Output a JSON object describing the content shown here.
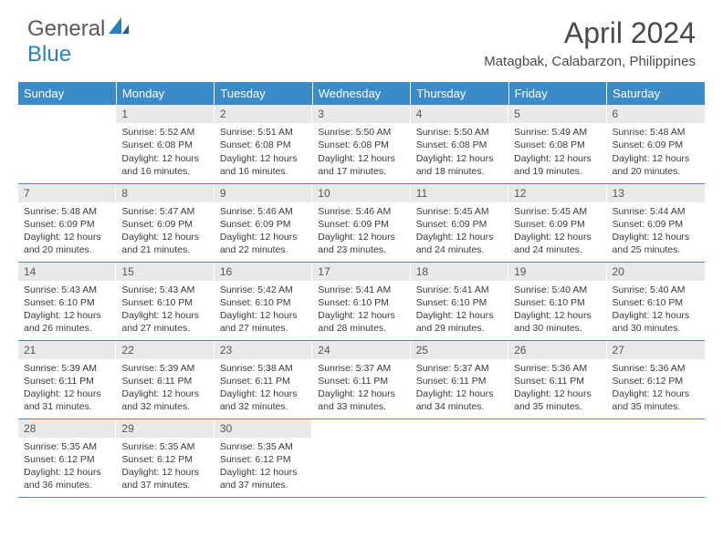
{
  "brand": {
    "name1": "General",
    "name2": "Blue"
  },
  "title": "April 2024",
  "location": "Matagbak, Calabarzon, Philippines",
  "colors": {
    "header_bg": "#3b8bc9",
    "header_text": "#ffffff",
    "daynum_bg": "#e9e9e9",
    "rule": "#3b8bc9",
    "text": "#3a3a3a"
  },
  "weekdays": [
    "Sunday",
    "Monday",
    "Tuesday",
    "Wednesday",
    "Thursday",
    "Friday",
    "Saturday"
  ],
  "weeks": [
    [
      {
        "day": "",
        "sunrise": "",
        "sunset": "",
        "daylight": ""
      },
      {
        "day": "1",
        "sunrise": "Sunrise: 5:52 AM",
        "sunset": "Sunset: 6:08 PM",
        "daylight": "Daylight: 12 hours and 16 minutes."
      },
      {
        "day": "2",
        "sunrise": "Sunrise: 5:51 AM",
        "sunset": "Sunset: 6:08 PM",
        "daylight": "Daylight: 12 hours and 16 minutes."
      },
      {
        "day": "3",
        "sunrise": "Sunrise: 5:50 AM",
        "sunset": "Sunset: 6:08 PM",
        "daylight": "Daylight: 12 hours and 17 minutes."
      },
      {
        "day": "4",
        "sunrise": "Sunrise: 5:50 AM",
        "sunset": "Sunset: 6:08 PM",
        "daylight": "Daylight: 12 hours and 18 minutes."
      },
      {
        "day": "5",
        "sunrise": "Sunrise: 5:49 AM",
        "sunset": "Sunset: 6:08 PM",
        "daylight": "Daylight: 12 hours and 19 minutes."
      },
      {
        "day": "6",
        "sunrise": "Sunrise: 5:48 AM",
        "sunset": "Sunset: 6:09 PM",
        "daylight": "Daylight: 12 hours and 20 minutes."
      }
    ],
    [
      {
        "day": "7",
        "sunrise": "Sunrise: 5:48 AM",
        "sunset": "Sunset: 6:09 PM",
        "daylight": "Daylight: 12 hours and 20 minutes."
      },
      {
        "day": "8",
        "sunrise": "Sunrise: 5:47 AM",
        "sunset": "Sunset: 6:09 PM",
        "daylight": "Daylight: 12 hours and 21 minutes."
      },
      {
        "day": "9",
        "sunrise": "Sunrise: 5:46 AM",
        "sunset": "Sunset: 6:09 PM",
        "daylight": "Daylight: 12 hours and 22 minutes."
      },
      {
        "day": "10",
        "sunrise": "Sunrise: 5:46 AM",
        "sunset": "Sunset: 6:09 PM",
        "daylight": "Daylight: 12 hours and 23 minutes."
      },
      {
        "day": "11",
        "sunrise": "Sunrise: 5:45 AM",
        "sunset": "Sunset: 6:09 PM",
        "daylight": "Daylight: 12 hours and 24 minutes."
      },
      {
        "day": "12",
        "sunrise": "Sunrise: 5:45 AM",
        "sunset": "Sunset: 6:09 PM",
        "daylight": "Daylight: 12 hours and 24 minutes."
      },
      {
        "day": "13",
        "sunrise": "Sunrise: 5:44 AM",
        "sunset": "Sunset: 6:09 PM",
        "daylight": "Daylight: 12 hours and 25 minutes."
      }
    ],
    [
      {
        "day": "14",
        "sunrise": "Sunrise: 5:43 AM",
        "sunset": "Sunset: 6:10 PM",
        "daylight": "Daylight: 12 hours and 26 minutes."
      },
      {
        "day": "15",
        "sunrise": "Sunrise: 5:43 AM",
        "sunset": "Sunset: 6:10 PM",
        "daylight": "Daylight: 12 hours and 27 minutes."
      },
      {
        "day": "16",
        "sunrise": "Sunrise: 5:42 AM",
        "sunset": "Sunset: 6:10 PM",
        "daylight": "Daylight: 12 hours and 27 minutes."
      },
      {
        "day": "17",
        "sunrise": "Sunrise: 5:41 AM",
        "sunset": "Sunset: 6:10 PM",
        "daylight": "Daylight: 12 hours and 28 minutes."
      },
      {
        "day": "18",
        "sunrise": "Sunrise: 5:41 AM",
        "sunset": "Sunset: 6:10 PM",
        "daylight": "Daylight: 12 hours and 29 minutes."
      },
      {
        "day": "19",
        "sunrise": "Sunrise: 5:40 AM",
        "sunset": "Sunset: 6:10 PM",
        "daylight": "Daylight: 12 hours and 30 minutes."
      },
      {
        "day": "20",
        "sunrise": "Sunrise: 5:40 AM",
        "sunset": "Sunset: 6:10 PM",
        "daylight": "Daylight: 12 hours and 30 minutes."
      }
    ],
    [
      {
        "day": "21",
        "sunrise": "Sunrise: 5:39 AM",
        "sunset": "Sunset: 6:11 PM",
        "daylight": "Daylight: 12 hours and 31 minutes."
      },
      {
        "day": "22",
        "sunrise": "Sunrise: 5:39 AM",
        "sunset": "Sunset: 6:11 PM",
        "daylight": "Daylight: 12 hours and 32 minutes."
      },
      {
        "day": "23",
        "sunrise": "Sunrise: 5:38 AM",
        "sunset": "Sunset: 6:11 PM",
        "daylight": "Daylight: 12 hours and 32 minutes."
      },
      {
        "day": "24",
        "sunrise": "Sunrise: 5:37 AM",
        "sunset": "Sunset: 6:11 PM",
        "daylight": "Daylight: 12 hours and 33 minutes."
      },
      {
        "day": "25",
        "sunrise": "Sunrise: 5:37 AM",
        "sunset": "Sunset: 6:11 PM",
        "daylight": "Daylight: 12 hours and 34 minutes."
      },
      {
        "day": "26",
        "sunrise": "Sunrise: 5:36 AM",
        "sunset": "Sunset: 6:11 PM",
        "daylight": "Daylight: 12 hours and 35 minutes."
      },
      {
        "day": "27",
        "sunrise": "Sunrise: 5:36 AM",
        "sunset": "Sunset: 6:12 PM",
        "daylight": "Daylight: 12 hours and 35 minutes."
      }
    ],
    [
      {
        "day": "28",
        "sunrise": "Sunrise: 5:35 AM",
        "sunset": "Sunset: 6:12 PM",
        "daylight": "Daylight: 12 hours and 36 minutes."
      },
      {
        "day": "29",
        "sunrise": "Sunrise: 5:35 AM",
        "sunset": "Sunset: 6:12 PM",
        "daylight": "Daylight: 12 hours and 37 minutes."
      },
      {
        "day": "30",
        "sunrise": "Sunrise: 5:35 AM",
        "sunset": "Sunset: 6:12 PM",
        "daylight": "Daylight: 12 hours and 37 minutes."
      },
      {
        "day": "",
        "sunrise": "",
        "sunset": "",
        "daylight": ""
      },
      {
        "day": "",
        "sunrise": "",
        "sunset": "",
        "daylight": ""
      },
      {
        "day": "",
        "sunrise": "",
        "sunset": "",
        "daylight": ""
      },
      {
        "day": "",
        "sunrise": "",
        "sunset": "",
        "daylight": ""
      }
    ]
  ]
}
